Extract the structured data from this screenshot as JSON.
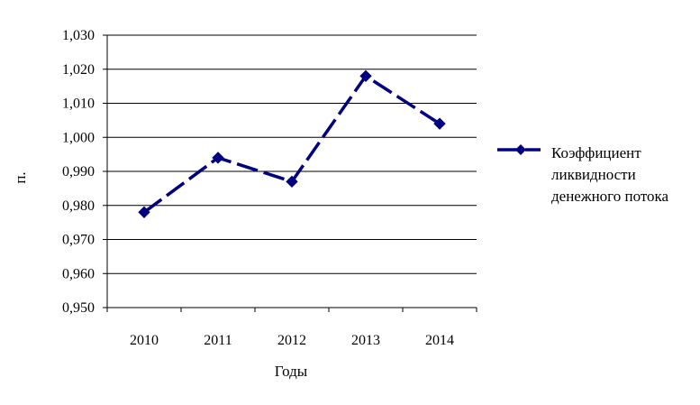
{
  "chart_data": {
    "type": "line",
    "title": "",
    "xlabel": "Годы",
    "ylabel": "п.",
    "categories": [
      "2010",
      "2011",
      "2012",
      "2013",
      "2014"
    ],
    "series": [
      {
        "name": "Коэффициент ликвидности денежного потока",
        "legend_lines": [
          "Коэффициент",
          "ликвидности",
          "денежного потока"
        ],
        "values": [
          0.978,
          0.994,
          0.987,
          1.018,
          1.004
        ],
        "color": "#000080",
        "marker": "diamond",
        "line_style": "dashed"
      }
    ],
    "ylim": [
      0.95,
      1.03
    ],
    "y_ticks": [
      "0,950",
      "0,960",
      "0,970",
      "0,980",
      "0,990",
      "1,000",
      "1,010",
      "1,020",
      "1,030"
    ],
    "grid": true,
    "legend_position": "right"
  }
}
